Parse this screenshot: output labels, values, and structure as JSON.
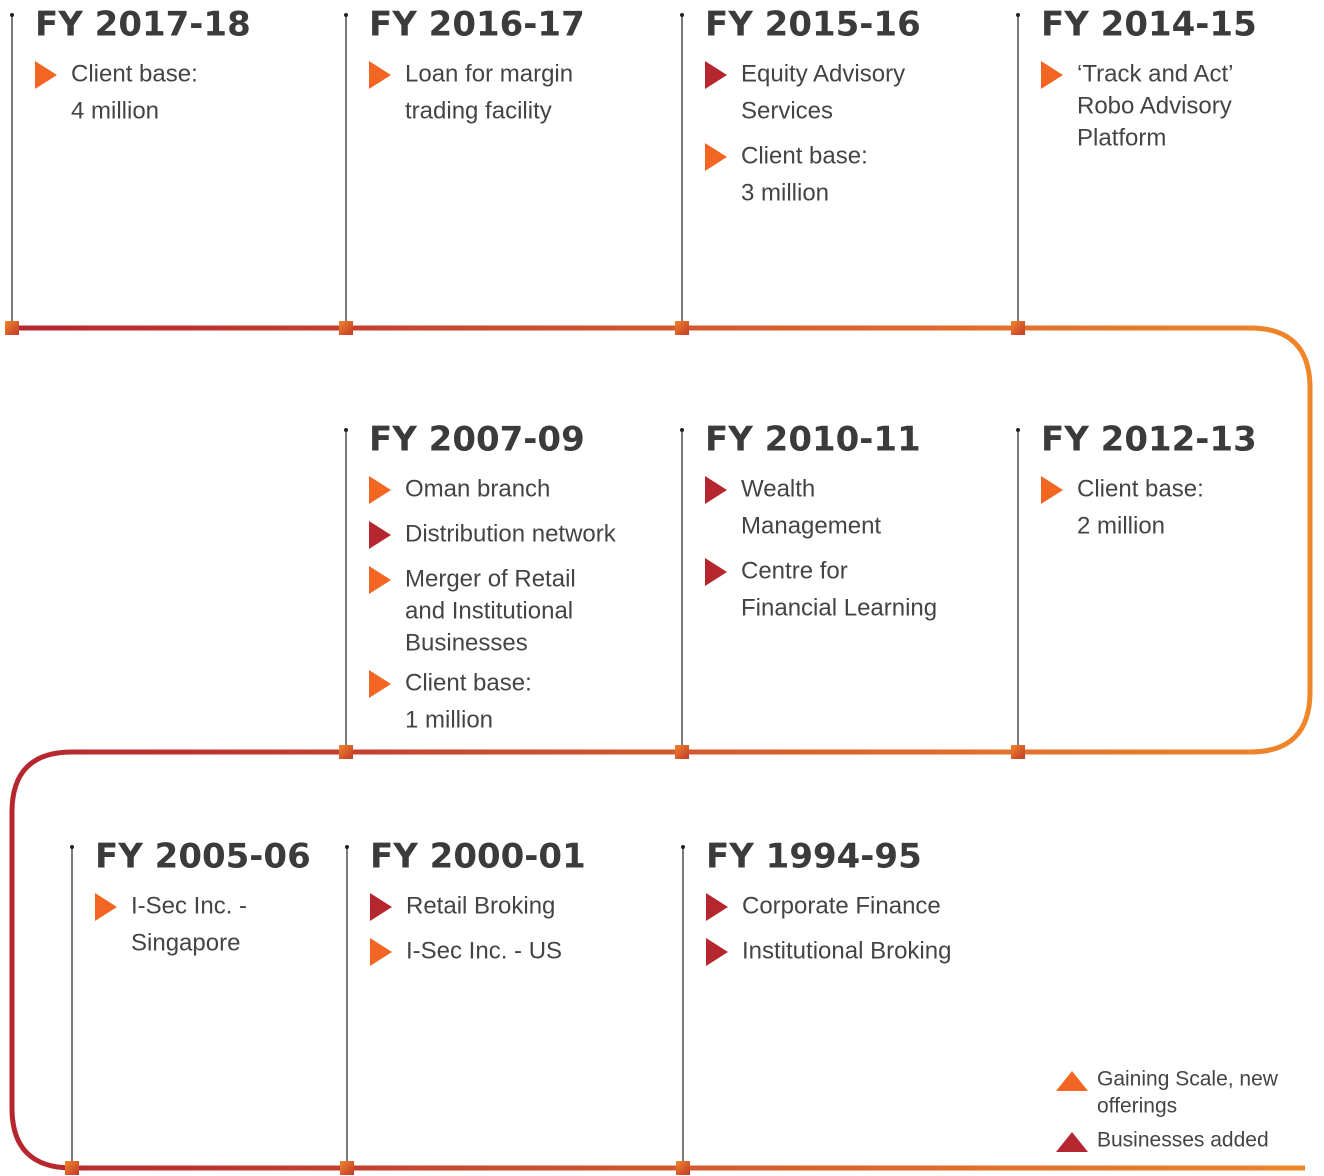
{
  "nodes": [
    {
      "title": "FY 2017-18",
      "items": [
        {
          "lines": [
            "Client base:",
            "4 million"
          ],
          "color": "#f26522"
        }
      ]
    },
    {
      "title": "FY 2016-17",
      "items": [
        {
          "lines": [
            "Loan for margin",
            "trading facility"
          ],
          "color": "#f26522"
        }
      ]
    },
    {
      "title": "FY 2015-16",
      "items": [
        {
          "lines": [
            "Equity Advisory",
            "Services"
          ],
          "color": "#b5262f"
        },
        {
          "lines": [
            "Client base:",
            "3 million"
          ],
          "color": "#f26522"
        }
      ]
    },
    {
      "title": "FY 2014-15",
      "items": [
        {
          "lines": [
            "‘Track and Act’",
            "Robo Advisory",
            "Platform"
          ],
          "color": "#f26522"
        }
      ]
    },
    {
      "title": "FY 2007-09",
      "items": [
        {
          "lines": [
            "Oman branch"
          ],
          "color": "#f26522"
        },
        {
          "lines": [
            "Distribution network"
          ],
          "color": "#b5262f"
        },
        {
          "lines": [
            "Merger of Retail",
            "and Institutional",
            "Businesses"
          ],
          "color": "#f26522"
        },
        {
          "lines": [
            "Client base:",
            "1 million"
          ],
          "color": "#f26522"
        }
      ]
    },
    {
      "title": "FY 2010-11",
      "items": [
        {
          "lines": [
            "Wealth",
            "Management"
          ],
          "color": "#b5262f"
        },
        {
          "lines": [
            "Centre for",
            "Financial Learning"
          ],
          "color": "#b5262f"
        }
      ]
    },
    {
      "title": "FY 2012-13",
      "items": [
        {
          "lines": [
            "Client base:",
            "2 million"
          ],
          "color": "#f26522"
        }
      ]
    },
    {
      "title": "FY 2005-06",
      "items": [
        {
          "lines": [
            "I-Sec Inc. -",
            "Singapore"
          ],
          "color": "#f26522"
        }
      ]
    },
    {
      "title": "FY 2000-01",
      "items": [
        {
          "lines": [
            "Retail Broking"
          ],
          "color": "#b5262f"
        },
        {
          "lines": [
            "I-Sec Inc. - US"
          ],
          "color": "#f26522"
        }
      ]
    },
    {
      "title": "FY 1994-95",
      "items": [
        {
          "lines": [
            "Corporate Finance"
          ],
          "color": "#b5262f"
        },
        {
          "lines": [
            "Institutional Broking"
          ],
          "color": "#b5262f"
        }
      ]
    }
  ],
  "legend": [
    {
      "lines": [
        "Gaining Scale, new",
        "offerings"
      ],
      "color": "#f26522"
    },
    {
      "lines": [
        "Businesses added"
      ],
      "color": "#b5262f"
    }
  ]
}
